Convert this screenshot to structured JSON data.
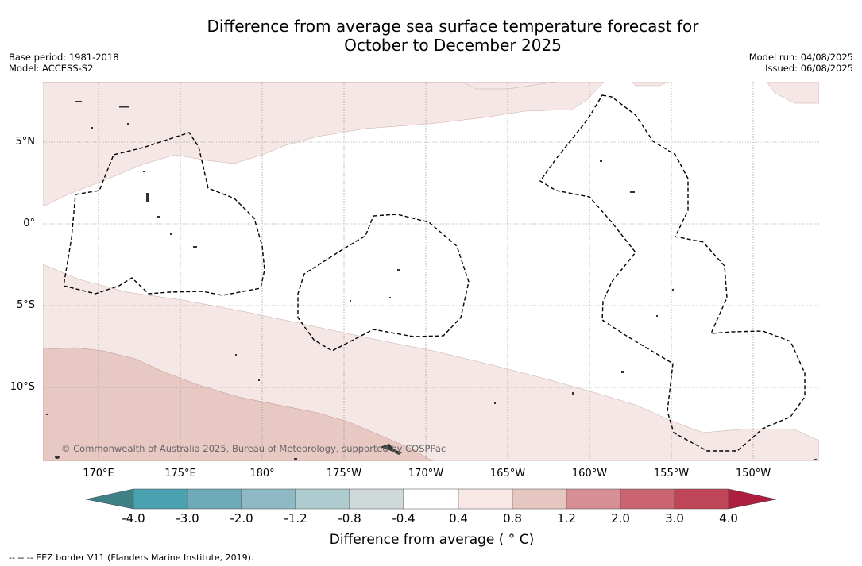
{
  "title": {
    "line1": "Difference from average sea surface temperature forecast for",
    "line2": "October to December 2025"
  },
  "meta": {
    "base_period": "Base period: 1981-2018",
    "model": "Model: ACCESS-S2",
    "model_run": "Model run: 04/08/2025",
    "issued": "Issued: 06/08/2025"
  },
  "map": {
    "longitude_labels": [
      "170°E",
      "175°E",
      "180°",
      "175°W",
      "170°W",
      "165°W",
      "160°W",
      "155°W",
      "150°W"
    ],
    "latitude_labels": [
      "5°N",
      "0°",
      "5°S",
      "10°S"
    ],
    "copyright": "© Commonwealth of Australia 2025, Bureau of Meteorology, supported by COSPPac",
    "anomaly_fill_colors": {
      "0.4_to_0.8": "#f5e7e5",
      "0.8_to_1.2": "#e8c8c3"
    }
  },
  "colorbar": {
    "labels": [
      "-4.0",
      "-3.0",
      "-2.0",
      "-1.2",
      "-0.8",
      "-0.4",
      "0.4",
      "0.8",
      "1.2",
      "2.0",
      "3.0",
      "4.0"
    ],
    "colors": [
      "#3f7f86",
      "#4aa1b0",
      "#6eaab8",
      "#8fb9c4",
      "#aecbcf",
      "#cfd9d9",
      "#ffffff",
      "#f7e8e6",
      "#e6c6c1",
      "#d68f94",
      "#c96470",
      "#bf4657",
      "#ae1e3e"
    ],
    "title": "Difference from average ( ° C)"
  },
  "footnote": "--  --  -- EEZ border V11 (Flanders Marine Institute, 2019)."
}
